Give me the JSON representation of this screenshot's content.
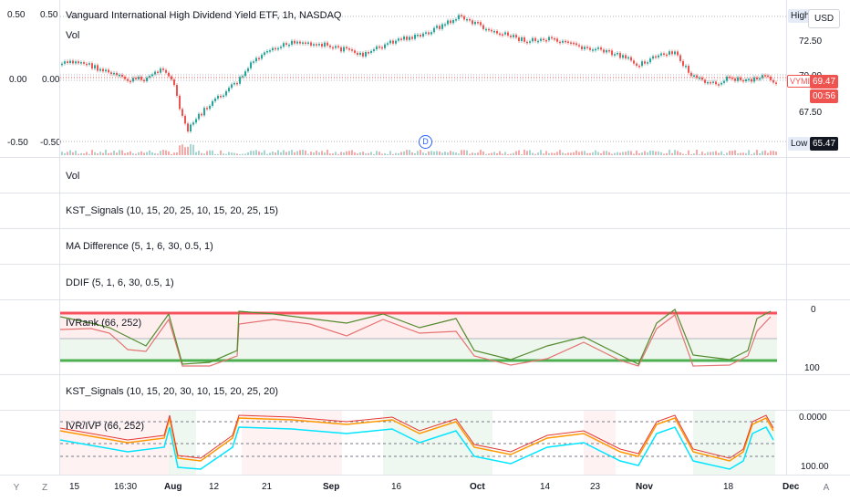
{
  "chart": {
    "title": "Vanguard International High Dividend Yield ETF, 1h, NASDAQ",
    "symbol": "VYMI",
    "price": "69.47",
    "countdown": "00:56",
    "currency": "USD",
    "high_label": "High",
    "low_label": "Low",
    "low_value": "65.47",
    "right_axis": [
      "72.50",
      "70.00",
      "67.50"
    ],
    "left_axis": [
      "0.50",
      "0.00",
      "-0.50"
    ],
    "left_axis2": [
      "0.50",
      "0.00",
      "-0.50"
    ],
    "event_marker": "D"
  },
  "panes": {
    "vol": "Vol",
    "vol2": "Vol",
    "kst1": "KST_Signals (10, 15, 20, 25, 10, 15, 20, 25, 15)",
    "madiff": "MA Difference (5, 1, 6, 30, 0.5, 1)",
    "ddif": "DDIF (5, 1, 6, 30, 0.5, 1)",
    "ivrank": "IVRank (66, 252)",
    "kst2": "KST_Signals (10, 15, 20, 30, 10, 15, 20, 25, 20)",
    "ivrivp": "IVR/IVP (66, 252)"
  },
  "ivrank_axis": [
    "0",
    "100"
  ],
  "ivrivp_axis": [
    "0.0000",
    "100.00"
  ],
  "time_axis": [
    "15",
    "16:30",
    "Aug",
    "12",
    "21",
    "Sep",
    "16",
    "Oct",
    "14",
    "23",
    "Nov",
    "18",
    "Dec"
  ],
  "bottom_buttons": [
    "Y",
    "Z",
    "A"
  ],
  "colors": {
    "up": "#26a69a",
    "down": "#ef5350",
    "price_tag": "#ef5350",
    "green_line": "#4caf50",
    "red_line": "#f7525f",
    "orange": "#ff9800",
    "cyan": "#00e5ff"
  }
}
